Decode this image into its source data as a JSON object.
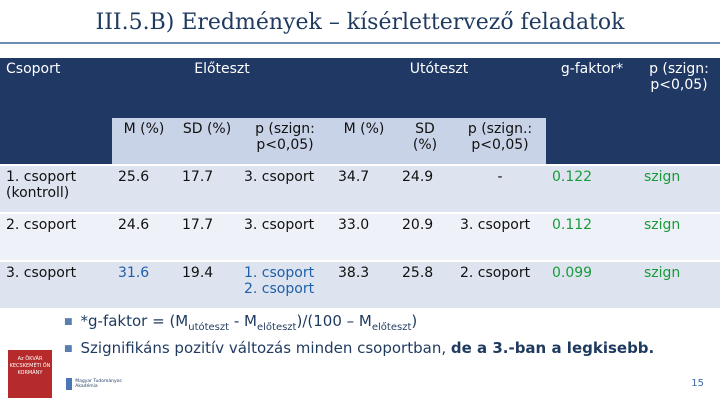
{
  "title": "III.5.B) Eredmények – kísérlettervező feladatok",
  "table": {
    "h_group": "Csoport",
    "h_pre": "Előteszt",
    "h_post": "Utóteszt",
    "h_gf": "g-faktor*",
    "h_p": "p (szign: p<0,05)",
    "sub_pre_m": "M (%)",
    "sub_pre_sd": "SD (%)",
    "sub_pre_p": "p (szign: p<0,05)",
    "sub_post_m": "M (%)",
    "sub_post_sd": "SD (%)",
    "sub_post_p": "p (szign.: p<0,05)",
    "rows": [
      {
        "group": "1. csoport (kontroll)",
        "pre_m": "25.6",
        "pre_sd": "17.7",
        "pre_p": "3. csoport",
        "post_m": "34.7",
        "post_sd": "24.9",
        "post_p": "-",
        "gf": "0.122",
        "p": "szign"
      },
      {
        "group": "2. csoport",
        "pre_m": "24.6",
        "pre_sd": "17.7",
        "pre_p": "3. csoport",
        "post_m": "33.0",
        "post_sd": "20.9",
        "post_p": "3. csoport",
        "gf": "0.112",
        "p": "szign"
      },
      {
        "group": "3. csoport",
        "pre_m": "31.6",
        "pre_sd": "19.4",
        "pre_p_1": "1. csoport",
        "pre_p_2": "2. csoport",
        "post_m": "38.3",
        "post_sd": "25.8",
        "post_p": "2. csoport",
        "gf": "0.099",
        "p": "szign"
      }
    ]
  },
  "formula": {
    "a": "*g-faktor = (M",
    "sub1": "utóteszt",
    "b": " - M",
    "sub2": "előteszt",
    "c": ")/(100 – M",
    "sub3": "előteszt",
    "d": ")"
  },
  "bullet2": {
    "normal": "Szignifikáns pozitív változás minden csoportban, ",
    "bold": "de a 3.-ban a legkisebb."
  },
  "logo1_text": "Az ÖKVÁR KECSKEMÉTI ÖN KORMÁNY",
  "logo2_text": "Magyar Tudományos Akadémia",
  "page_number": "15",
  "colors": {
    "header": "#1f3864",
    "subheader": "#c9d3e8",
    "row_a": "#dde3ef",
    "row_b": "#eef1f8",
    "green": "#1a9a3a",
    "blue": "#1f5fa8"
  }
}
